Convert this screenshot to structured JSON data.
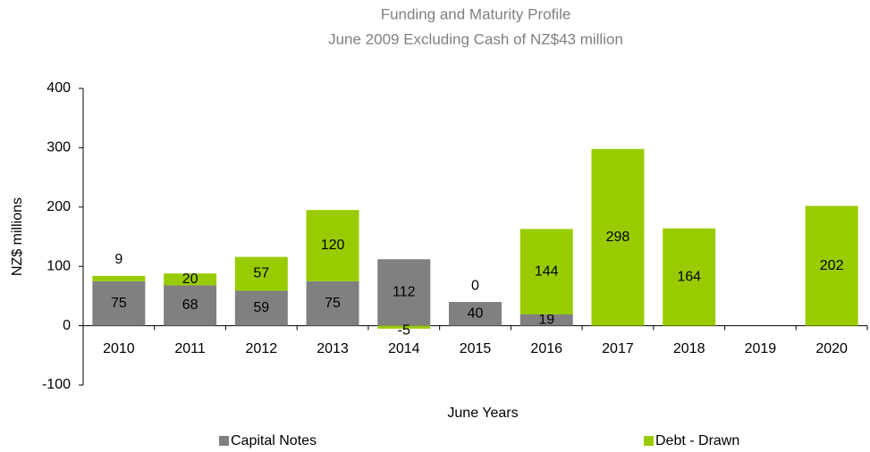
{
  "chart_data": {
    "type": "stacked-bar",
    "title": "Funding and Maturity Profile",
    "subtitle": "June 2009 Excluding Cash of NZ$43 million",
    "x_label": "June Years",
    "y_label": "NZ$ millions",
    "categories": [
      "2010",
      "2011",
      "2012",
      "2013",
      "2014",
      "2015",
      "2016",
      "2017",
      "2018",
      "2019",
      "2020"
    ],
    "series": [
      {
        "name": "Capital Notes",
        "color": "#808080",
        "values": [
          75,
          68,
          59,
          75,
          112,
          40,
          19,
          null,
          null,
          null,
          null
        ]
      },
      {
        "name": "Debt - Drawn",
        "color": "#99cc00",
        "values": [
          9,
          20,
          57,
          120,
          -5,
          0,
          144,
          298,
          164,
          null,
          202
        ]
      }
    ],
    "ylim": [
      -100,
      400
    ],
    "yticks": [
      -100,
      0,
      100,
      200,
      300,
      400
    ]
  }
}
